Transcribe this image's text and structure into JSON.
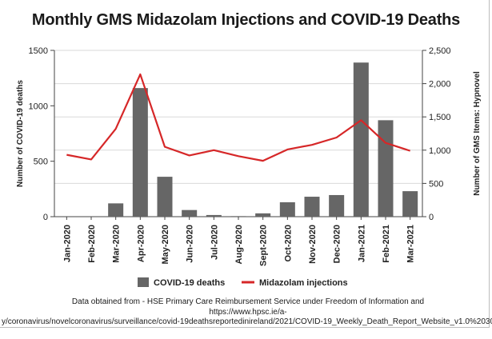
{
  "chart_data": {
    "type": "bar+line",
    "title": "Monthly GMS Midazolam Injections and COVID-19 Deaths",
    "categories": [
      "Jan-2020",
      "Feb-2020",
      "Mar-2020",
      "Apr-2020",
      "May-2020",
      "Jun-2020",
      "Jul-2020",
      "Aug-2020",
      "Sept-2020",
      "Oct-2020",
      "Nov-2020",
      "Dec-2020",
      "Jan-2021",
      "Feb-2021",
      "Mar-2021"
    ],
    "series": [
      {
        "name": "COVID-19 deaths",
        "type": "bar",
        "axis": "left",
        "color": "#666666",
        "values": [
          0,
          0,
          120,
          1160,
          360,
          60,
          15,
          5,
          30,
          130,
          180,
          195,
          1390,
          870,
          230
        ]
      },
      {
        "name": "Midazolam injections",
        "type": "line",
        "axis": "right",
        "color": "#d62728",
        "values": [
          930,
          860,
          1320,
          2140,
          1050,
          920,
          1000,
          910,
          840,
          1010,
          1080,
          1190,
          1450,
          1110,
          990
        ]
      }
    ],
    "y_left": {
      "label": "Number of COVID-19 deaths",
      "range": [
        0,
        1500
      ],
      "ticks": [
        0,
        500,
        1000,
        1500
      ],
      "tick_labels": [
        "0",
        "500",
        "1000",
        "1500"
      ]
    },
    "y_right": {
      "label": "Number of GMS Items: Hypnovel",
      "range": [
        0,
        2500
      ],
      "ticks": [
        0,
        500,
        1000,
        1500,
        2000,
        2500
      ],
      "tick_labels": [
        "0",
        "500",
        "1,000",
        "1,500",
        "2,000",
        "2,500"
      ]
    },
    "grid": "horizontal",
    "legend": {
      "position": "bottom",
      "entries": [
        "COVID-19 deaths",
        "Midazolam injections"
      ]
    },
    "source_lines": [
      "Data obtained from -  HSE Primary Care Reimbursement Service under Freedom of Information and",
      "https://www.hpsc.ie/a-",
      "y/coronavirus/novelcoronavirus/surveillance/covid-19deathsreportedinireland/2021/COVID-19_Weekly_Death_Report_Website_v1.0%2030"
    ]
  }
}
